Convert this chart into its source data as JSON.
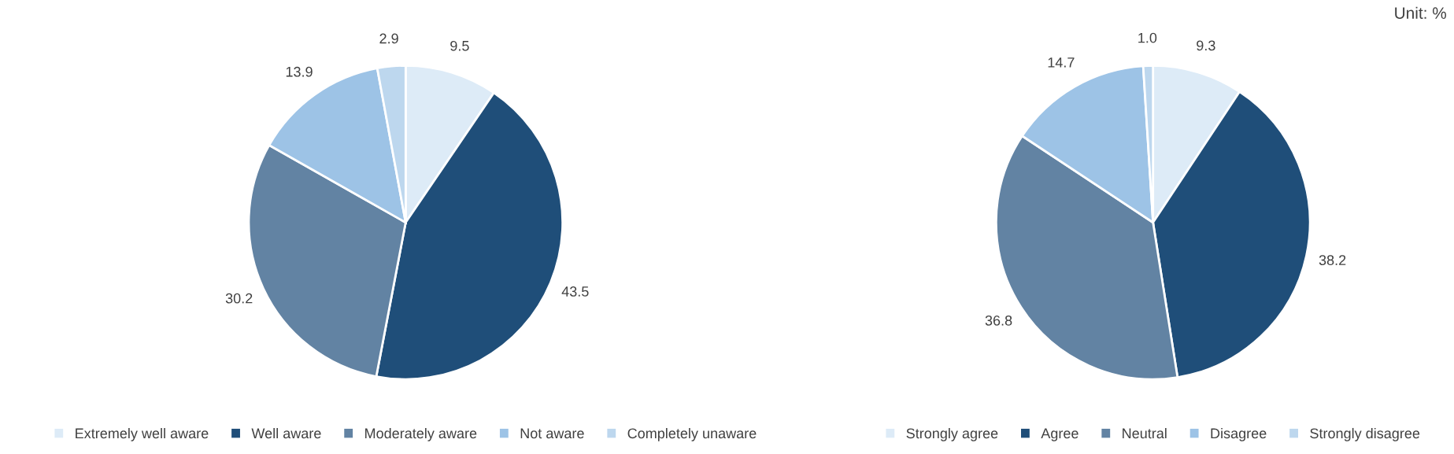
{
  "chart_data": [
    {
      "type": "pie",
      "categories": [
        "Extremely well aware",
        "Well aware",
        "Moderately aware",
        "Not aware",
        "Completely unaware"
      ],
      "values": [
        9.5,
        43.5,
        30.2,
        13.9,
        2.9
      ],
      "colors": [
        "#ddebf7",
        "#1f4e79",
        "#6283a3",
        "#9dc3e6",
        "#bdd7ee"
      ],
      "data_labels": true,
      "legend": "bottom"
    },
    {
      "type": "pie",
      "categories": [
        "Strongly agree",
        "Agree",
        "Neutral",
        "Disagree",
        "Strongly disagree"
      ],
      "values": [
        9.3,
        38.2,
        36.8,
        14.7,
        1.0
      ],
      "value_labels": [
        "9.3",
        "38.2",
        "36.8",
        "14.7",
        "1.0"
      ],
      "colors": [
        "#ddebf7",
        "#1f4e79",
        "#6283a3",
        "#9dc3e6",
        "#bdd7ee"
      ],
      "legend": "bottom",
      "annotations": [
        "Unit: %"
      ]
    }
  ]
}
